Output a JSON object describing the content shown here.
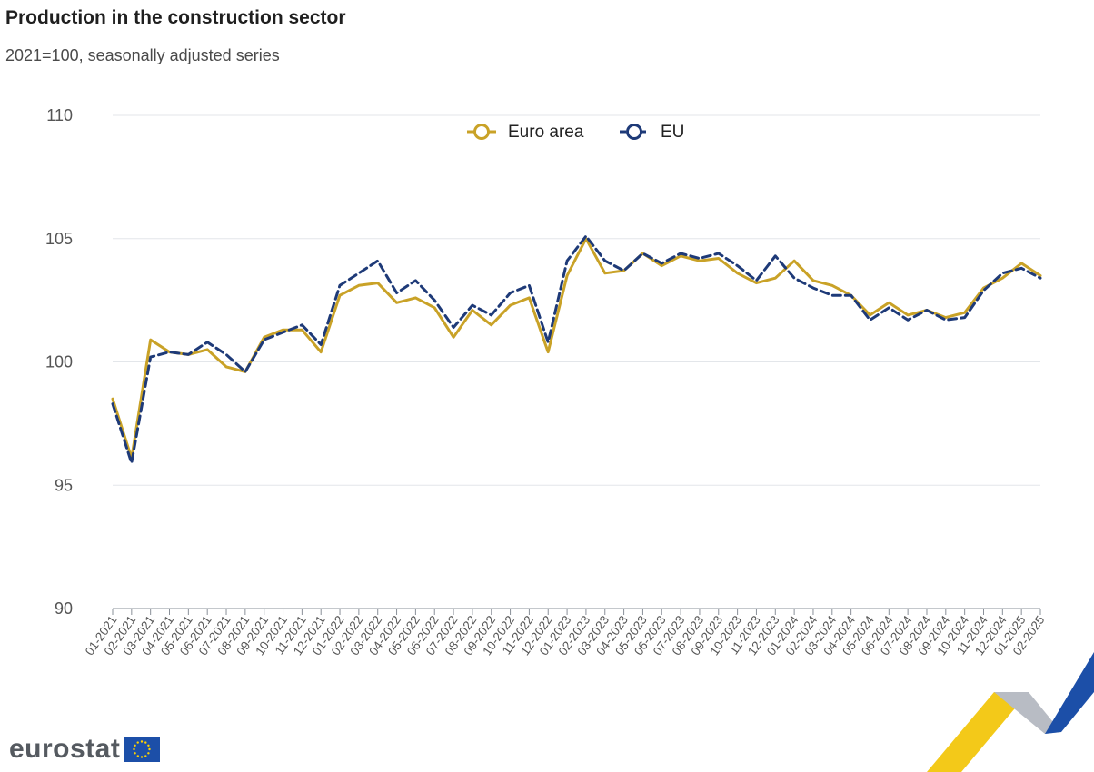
{
  "header": {
    "title": "Production in the construction sector",
    "subtitle": "2021=100, seasonally adjusted series"
  },
  "logo": {
    "text": "eurostat",
    "icon": "eu-flag-icon"
  },
  "chart_data": {
    "type": "line",
    "ylim": [
      90,
      110
    ],
    "yticks": [
      90,
      95,
      100,
      105,
      110
    ],
    "grid": true,
    "legend_position": "top-center",
    "categories": [
      "01-2021",
      "02-2021",
      "03-2021",
      "04-2021",
      "05-2021",
      "06-2021",
      "07-2021",
      "08-2021",
      "09-2021",
      "10-2021",
      "11-2021",
      "12-2021",
      "01-2022",
      "02-2022",
      "03-2022",
      "04-2022",
      "05-2022",
      "06-2022",
      "07-2022",
      "08-2022",
      "09-2022",
      "10-2022",
      "11-2022",
      "12-2022",
      "01-2023",
      "02-2023",
      "03-2023",
      "04-2023",
      "05-2023",
      "06-2023",
      "07-2023",
      "08-2023",
      "09-2023",
      "10-2023",
      "11-2023",
      "12-2023",
      "01-2024",
      "02-2024",
      "03-2024",
      "04-2024",
      "05-2024",
      "06-2024",
      "07-2024",
      "08-2024",
      "09-2024",
      "10-2024",
      "11-2024",
      "12-2024",
      "01-2025",
      "02-2025"
    ],
    "series": [
      {
        "name": "Euro area",
        "color": "#c9a227",
        "style": "solid",
        "values": [
          98.5,
          96.1,
          100.9,
          100.4,
          100.3,
          100.5,
          99.8,
          99.6,
          101.0,
          101.3,
          101.3,
          100.4,
          102.7,
          103.1,
          103.2,
          102.4,
          102.6,
          102.2,
          101.0,
          102.1,
          101.5,
          102.3,
          102.6,
          100.4,
          103.5,
          105.0,
          103.6,
          103.7,
          104.4,
          103.9,
          104.3,
          104.1,
          104.2,
          103.6,
          103.2,
          103.4,
          104.1,
          103.3,
          103.1,
          102.7,
          101.9,
          102.4,
          101.9,
          102.1,
          101.8,
          102.0,
          103.0,
          103.4,
          104.0,
          103.5
        ]
      },
      {
        "name": "EU",
        "color": "#1e3a78",
        "style": "dashed",
        "values": [
          98.3,
          95.9,
          100.2,
          100.4,
          100.3,
          100.8,
          100.3,
          99.6,
          100.9,
          101.2,
          101.5,
          100.7,
          103.1,
          103.6,
          104.1,
          102.8,
          103.3,
          102.5,
          101.4,
          102.3,
          101.9,
          102.8,
          103.1,
          100.8,
          104.1,
          105.1,
          104.1,
          103.7,
          104.4,
          104.0,
          104.4,
          104.2,
          104.4,
          103.9,
          103.3,
          104.3,
          103.4,
          103.0,
          102.7,
          102.7,
          101.7,
          102.2,
          101.7,
          102.1,
          101.7,
          101.8,
          102.9,
          103.6,
          103.8,
          103.4
        ]
      }
    ]
  }
}
